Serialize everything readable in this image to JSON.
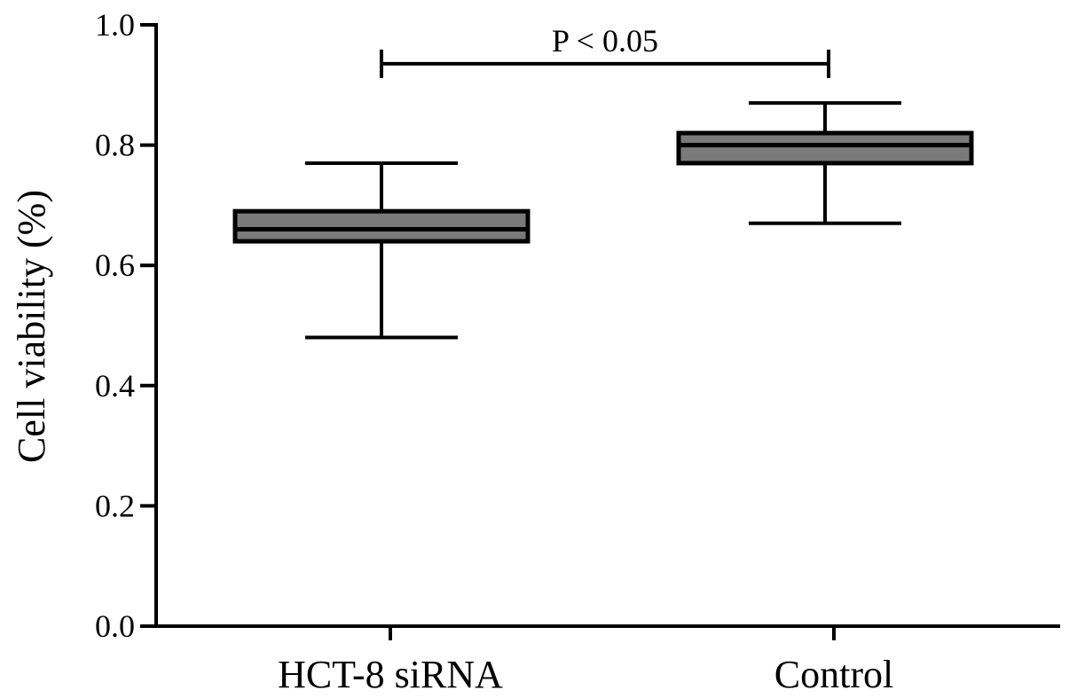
{
  "chart_data": {
    "type": "box",
    "ylabel": "Cell viability (%)",
    "xlabel": "",
    "ylim": [
      0,
      1.0
    ],
    "yticks": [
      0.0,
      0.2,
      0.4,
      0.6,
      0.8,
      1.0
    ],
    "ytick_labels": [
      "0.0",
      "0.2",
      "0.4",
      "0.6",
      "0.8",
      "1.0"
    ],
    "categories": [
      "HCT-8 siRNA",
      "Control"
    ],
    "boxes": [
      {
        "category": "HCT-8 siRNA",
        "min": 0.48,
        "q1": 0.64,
        "median": 0.66,
        "q3": 0.69,
        "max": 0.77
      },
      {
        "category": "Control",
        "min": 0.67,
        "q1": 0.77,
        "median": 0.8,
        "q3": 0.82,
        "max": 0.87
      }
    ],
    "annotation": {
      "text": "P < 0.05",
      "between": [
        "HCT-8 siRNA",
        "Control"
      ],
      "y": 0.95
    },
    "grid": false,
    "colors": {
      "box_fill": "#7a7a7a",
      "stroke": "#000000"
    }
  }
}
